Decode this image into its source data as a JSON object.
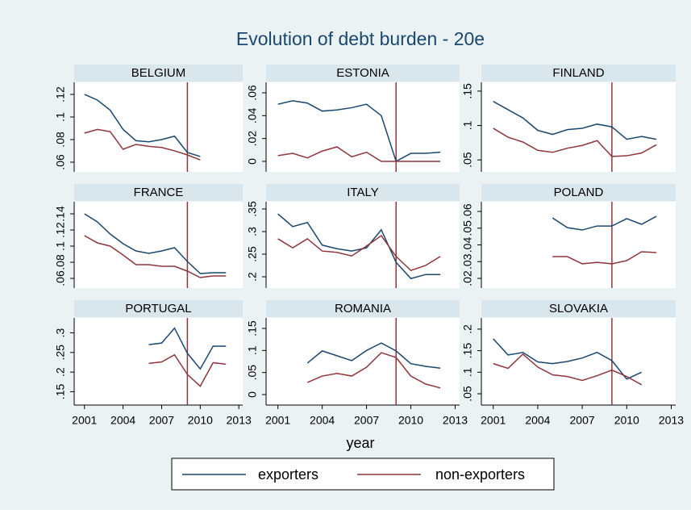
{
  "chart_data": {
    "type": "line",
    "title": "Evolution of debt burden - 20e",
    "xlabel": "year",
    "x": [
      2001,
      2002,
      2003,
      2004,
      2005,
      2006,
      2007,
      2008,
      2009,
      2010,
      2011,
      2012
    ],
    "xlim": [
      2000.2,
      2013.3
    ],
    "xticks": [
      2001,
      2004,
      2007,
      2010,
      2013
    ],
    "xline": 2009,
    "xline_color": "#90353b",
    "grid": false,
    "legend_position": "bottom",
    "legend": [
      {
        "name": "exporters",
        "color": "#1a476f"
      },
      {
        "name": "non-exporters",
        "color": "#90353b"
      }
    ],
    "panels": [
      {
        "title": "BELGIUM",
        "ylim": [
          0.0514,
          0.1307
        ],
        "yticks": [
          {
            "value": 0.06,
            "label": ".06"
          },
          {
            "value": 0.08,
            "label": ".08"
          },
          {
            "value": 0.1,
            "label": ".1"
          },
          {
            "value": 0.12,
            "label": ".12"
          }
        ],
        "series": [
          {
            "values": [
              0.12,
              0.115,
              0.106,
              0.089,
              0.079,
              0.078,
              0.08,
              0.083,
              0.0686,
              0.065,
              null,
              null
            ]
          },
          {
            "values": [
              0.0857,
              0.089,
              0.087,
              0.0714,
              0.0757,
              0.074,
              0.073,
              0.07,
              0.0664,
              0.062,
              null,
              null
            ]
          }
        ]
      },
      {
        "title": "ESTONIA",
        "ylim": [
          -0.0092,
          0.0692
        ],
        "yticks": [
          0,
          {
            "value": 0.02,
            "label": ".02"
          },
          {
            "value": 0.04,
            "label": ".04"
          },
          {
            "value": 0.06,
            "label": ".06"
          }
        ],
        "series": [
          {
            "values": [
              0.05,
              0.053,
              0.051,
              0.044,
              0.045,
              0.047,
              0.05,
              0.04,
              0,
              0.007,
              0.007,
              0.008
            ]
          },
          {
            "values": [
              0.005,
              0.007,
              0.003,
              0.009,
              0.0127,
              0.004,
              0.008,
              0,
              0,
              0,
              0,
              0
            ]
          }
        ]
      },
      {
        "title": "FINLAND",
        "ylim": [
          0.0326,
          0.1628
        ],
        "yticks": [
          {
            "value": 0.05,
            "label": ".05"
          },
          {
            "value": 0.1,
            "label": ".1"
          },
          {
            "value": 0.15,
            "label": ".15"
          }
        ],
        "series": [
          {
            "values": [
              0.135,
              0.123,
              0.111,
              0.093,
              0.087,
              0.094,
              0.096,
              0.102,
              0.098,
              0.08,
              0.084,
              0.08
            ]
          },
          {
            "values": [
              0.096,
              0.083,
              0.076,
              0.064,
              0.061,
              0.067,
              0.071,
              0.078,
              0.055,
              0.056,
              0.06,
              0.072
            ]
          }
        ]
      },
      {
        "title": "FRANCE",
        "ylim": [
          0.048,
          0.155
        ],
        "yticks": [
          {
            "value": 0.06,
            "label": ".06"
          },
          {
            "value": 0.08,
            "label": ".08"
          },
          {
            "value": 0.1,
            "label": ".1"
          },
          {
            "value": 0.12,
            "label": ".12"
          },
          {
            "value": 0.14,
            "label": ".14"
          }
        ],
        "series": [
          {
            "values": [
              0.14,
              0.13,
              0.115,
              0.103,
              0.094,
              0.091,
              0.094,
              0.098,
              0.081,
              0.066,
              0.067,
              0.067
            ]
          },
          {
            "values": [
              0.113,
              0.104,
              0.1,
              0.089,
              0.077,
              0.077,
              0.075,
              0.075,
              0.069,
              0.061,
              0.063,
              0.063
            ]
          }
        ]
      },
      {
        "title": "ITALY",
        "ylim": [
          0.175,
          0.366
        ],
        "yticks": [
          {
            "value": 0.2,
            "label": ".2"
          },
          {
            "value": 0.25,
            "label": ".25"
          },
          {
            "value": 0.3,
            "label": ".3"
          },
          {
            "value": 0.35,
            "label": ".35"
          }
        ],
        "series": [
          {
            "values": [
              0.339,
              0.311,
              0.32,
              0.27,
              0.262,
              0.257,
              0.264,
              0.304,
              0.232,
              0.196,
              0.205,
              0.205
            ]
          },
          {
            "values": [
              0.284,
              0.264,
              0.284,
              0.257,
              0.254,
              0.246,
              0.268,
              0.291,
              0.245,
              0.214,
              0.225,
              0.245
            ]
          }
        ]
      },
      {
        "title": "POLAND",
        "ylim": [
          0.0142,
          0.0658
        ],
        "yticks": [
          {
            "value": 0.02,
            "label": ".02"
          },
          {
            "value": 0.03,
            "label": ".03"
          },
          {
            "value": 0.04,
            "label": ".04"
          },
          {
            "value": 0.05,
            "label": ".05"
          },
          {
            "value": 0.06,
            "label": ".06"
          }
        ],
        "series": [
          {
            "values": [
              null,
              null,
              null,
              null,
              0.0561,
              0.0503,
              0.0489,
              0.0513,
              0.0513,
              0.0557,
              0.0523,
              0.0571
            ]
          },
          {
            "values": [
              null,
              null,
              null,
              null,
              0.033,
              0.033,
              0.0287,
              0.0296,
              0.0287,
              0.0306,
              0.0359,
              0.0354
            ]
          }
        ]
      },
      {
        "title": "PORTUGAL",
        "ylim": [
          0.116,
          0.338
        ],
        "yticks": [
          {
            "value": 0.15,
            "label": ".15"
          },
          {
            "value": 0.2,
            "label": ".2"
          },
          {
            "value": 0.25,
            "label": ".25"
          },
          {
            "value": 0.3,
            "label": ".3"
          }
        ],
        "series": [
          {
            "values": [
              null,
              null,
              null,
              null,
              null,
              0.27,
              0.274,
              0.312,
              0.248,
              0.208,
              0.266,
              0.266
            ]
          },
          {
            "values": [
              null,
              null,
              null,
              null,
              null,
              0.222,
              0.226,
              0.244,
              0.194,
              0.164,
              0.224,
              0.22
            ]
          }
        ]
      },
      {
        "title": "ROMANIA",
        "ylim": [
          -0.0238,
          0.1738
        ],
        "yticks": [
          0,
          {
            "value": 0.05,
            "label": ".05"
          },
          {
            "value": 0.1,
            "label": ".1"
          },
          {
            "value": 0.15,
            "label": ".15"
          }
        ],
        "series": [
          {
            "values": [
              null,
              null,
              0.0714,
              0.099,
              0.088,
              0.077,
              0.1,
              0.117,
              0.099,
              0.07,
              0.064,
              0.06
            ]
          },
          {
            "values": [
              null,
              null,
              0.0275,
              0.042,
              0.048,
              0.042,
              0.062,
              0.095,
              0.084,
              0.042,
              0.024,
              0.015
            ]
          }
        ]
      },
      {
        "title": "SLOVAKIA",
        "ylim": [
          0.0238,
          0.226
        ],
        "yticks": [
          {
            "value": 0.05,
            "label": ".05"
          },
          {
            "value": 0.1,
            "label": ".1"
          },
          {
            "value": 0.15,
            "label": ".15"
          },
          {
            "value": 0.2,
            "label": ".2"
          }
        ],
        "series": [
          {
            "values": [
              0.1775,
              0.14,
              0.146,
              0.124,
              0.12,
              0.125,
              0.133,
              0.146,
              0.127,
              0.084,
              0.1,
              null
            ]
          },
          {
            "values": [
              0.12,
              0.109,
              0.142,
              0.112,
              0.094,
              0.09,
              0.081,
              0.092,
              0.105,
              0.09,
              0.071,
              null
            ]
          }
        ]
      }
    ]
  }
}
